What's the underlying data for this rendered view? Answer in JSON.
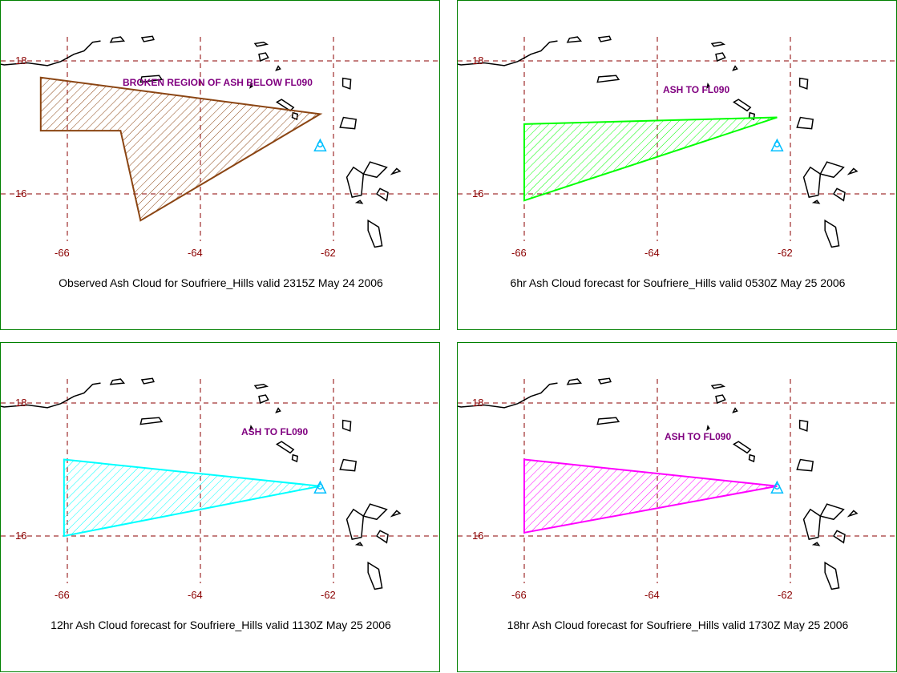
{
  "panels": [
    {
      "caption": "Observed Ash Cloud for Soufriere_Hills valid 2315Z May 24 2006",
      "annotation": "BROKEN REGION OF ASH BELOW FL090",
      "polygon_color": "#8b4513",
      "polygon": [
        [
          -66.4,
          16.95
        ],
        [
          -65.2,
          16.95
        ],
        [
          -64.9,
          15.6
        ],
        [
          -62.2,
          17.2
        ],
        [
          -66.4,
          17.75
        ]
      ],
      "lat_labels": [
        "18",
        "16"
      ],
      "lon_labels": [
        "-66",
        "-64",
        "-62"
      ]
    },
    {
      "caption": "6hr Ash Cloud forecast for Soufriere_Hills valid 0530Z May 25 2006",
      "annotation": "ASH TO FL090",
      "polygon_color": "#00ff00",
      "polygon": [
        [
          -66.0,
          17.05
        ],
        [
          -62.2,
          17.15
        ],
        [
          -66.0,
          15.9
        ]
      ],
      "lat_labels": [
        "18",
        "16"
      ],
      "lon_labels": [
        "-66",
        "-64",
        "-62"
      ]
    },
    {
      "caption": "12hr Ash Cloud forecast for Soufriere_Hills valid 1130Z May 25 2006",
      "annotation": "ASH TO FL090",
      "polygon_color": "#00ffff",
      "polygon": [
        [
          -66.05,
          17.15
        ],
        [
          -62.2,
          16.75
        ],
        [
          -66.05,
          16.0
        ]
      ],
      "lat_labels": [
        "18",
        "16"
      ],
      "lon_labels": [
        "-66",
        "-64",
        "-62"
      ]
    },
    {
      "caption": "18hr Ash Cloud forecast for Soufriere_Hills valid 1730Z May 25 2006",
      "annotation": "ASH TO FL090",
      "polygon_color": "#ff00ff",
      "polygon": [
        [
          -66.0,
          17.15
        ],
        [
          -62.2,
          16.75
        ],
        [
          -66.0,
          16.05
        ]
      ],
      "lat_labels": [
        "18",
        "16"
      ],
      "lon_labels": [
        "-66",
        "-64",
        "-62"
      ]
    }
  ],
  "map": {
    "gridline_color": "#8b0000",
    "label_color": "#8b0000",
    "annotation_color": "#800080",
    "coast_color": "#000000",
    "volcano_color": "#00bfff",
    "volcano_icon": "volcano-icon",
    "volcano_lon": -62.2,
    "volcano_lat": 16.72
  }
}
